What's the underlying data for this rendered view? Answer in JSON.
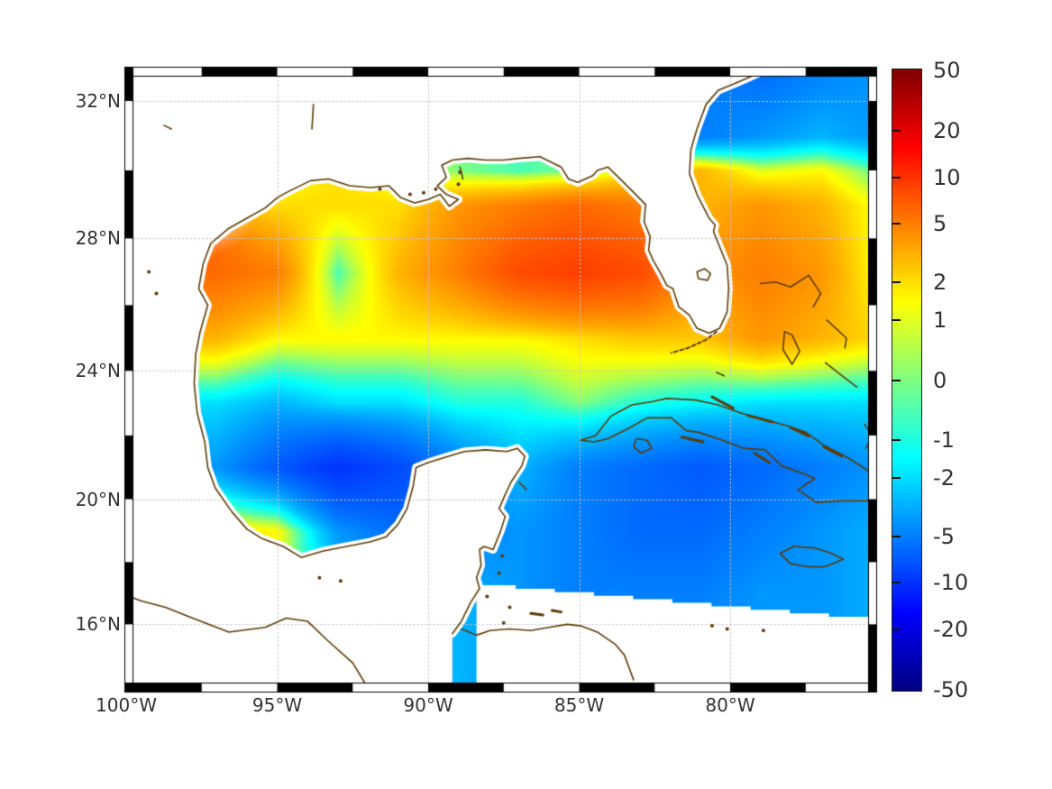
{
  "figure": {
    "kind": "geographic-heatmap",
    "title": "",
    "background": "#ffffff"
  },
  "axes": {
    "x_ticks": [
      {
        "lon": -100,
        "label": "100°W"
      },
      {
        "lon": -95,
        "label": "95°W"
      },
      {
        "lon": -90,
        "label": "90°W"
      },
      {
        "lon": -85,
        "label": "85°W"
      },
      {
        "lon": -80,
        "label": "80°W"
      }
    ],
    "y_ticks": [
      {
        "lat": 32,
        "label": "32°N"
      },
      {
        "lat": 28,
        "label": "28°N"
      },
      {
        "lat": 24,
        "label": "24°N"
      },
      {
        "lat": 20,
        "label": "20°N"
      },
      {
        "lat": 16,
        "label": "16°N"
      }
    ]
  },
  "colorbar": {
    "min": -50,
    "max": 50,
    "scale": "asinh",
    "colormap": "jet",
    "tick_values": [
      50,
      20,
      10,
      5,
      2,
      1,
      0,
      -1,
      -2,
      -5,
      -10,
      -20,
      -50
    ],
    "tick_labels": [
      "50",
      "20",
      "10",
      "5",
      "2",
      "1",
      "0",
      "-1",
      "-2",
      "-5",
      "-10",
      "-20",
      "-50"
    ],
    "jet_stops_top_to_bottom": [
      "#800000",
      "#ff0000",
      "#ffff00",
      "#80ff80",
      "#00ffff",
      "#0000ff",
      "#000080"
    ]
  },
  "chart_data": {
    "type": "heatmap",
    "title": "",
    "projection": "mercator",
    "lon_range": [
      -100,
      -75.4
    ],
    "lat_range": [
      14.1,
      32.75
    ],
    "color_limits": [
      -50,
      50
    ],
    "color_scale": "signed asinh (symlog), jet colormap",
    "gridlines": {
      "lons": [
        -95,
        -90,
        -85,
        -80
      ],
      "lats": [
        32,
        28,
        24,
        20,
        16
      ],
      "style": "dotted gray"
    },
    "grid": {
      "lons": [
        -99,
        -97,
        -95,
        -93,
        -91,
        -89,
        -87,
        -85,
        -83,
        -81,
        -79,
        -77,
        -75
      ],
      "lats": [
        33,
        31,
        30,
        29,
        27,
        25,
        23,
        21,
        19,
        17,
        15
      ],
      "values": [
        [
          null,
          null,
          null,
          null,
          null,
          null,
          null,
          null,
          null,
          -5,
          -6,
          -5,
          -4
        ],
        [
          null,
          null,
          null,
          null,
          null,
          null,
          null,
          null,
          -3,
          -5,
          -4,
          -3,
          -4
        ],
        [
          null,
          null,
          1,
          2,
          1,
          0,
          -0.5,
          0,
          2,
          3,
          1,
          1.5,
          -0.5
        ],
        [
          null,
          null,
          2,
          2,
          2,
          4,
          5,
          6,
          5,
          3,
          4,
          3,
          1
        ],
        [
          null,
          6,
          5,
          -0.5,
          3,
          5,
          8,
          9,
          8,
          4,
          5,
          4,
          1
        ],
        [
          null,
          3,
          1.5,
          1.5,
          1.5,
          1.5,
          1.5,
          2,
          2.5,
          2.5,
          4,
          3,
          2
        ],
        [
          null,
          -2,
          -3,
          -2,
          -2,
          -1,
          -1,
          0,
          -1,
          -1.5,
          -2,
          -2,
          -2
        ],
        [
          null,
          -4,
          -7,
          -10,
          -8,
          -5,
          -3,
          -5,
          -6,
          -7,
          -6,
          -5,
          -4
        ],
        [
          null,
          2,
          1.5,
          -4,
          -6,
          -5,
          -4,
          -5,
          -6,
          -6,
          -5,
          -4,
          -3
        ],
        [
          null,
          2,
          1,
          -2,
          -3,
          -3,
          -4,
          -5,
          -5,
          -5,
          -4,
          -4,
          -3
        ],
        [
          null,
          null,
          0,
          -2,
          -3,
          -3,
          -4,
          -4,
          -4,
          -4,
          -4,
          -4,
          -3
        ]
      ]
    },
    "no_data_wedge": {
      "from": [
        -87.6,
        17.3
      ],
      "to": [
        -75.4,
        16.2
      ],
      "note": "stair-step masked region in SE corner"
    }
  },
  "coastlines": {
    "mainland": [
      [
        -78.6,
        33.3
      ],
      [
        -78.9,
        32.85
      ],
      [
        -79.7,
        32.55
      ],
      [
        -80.4,
        32.3
      ],
      [
        -80.8,
        31.9
      ],
      [
        -81.1,
        31.2
      ],
      [
        -81.3,
        30.6
      ],
      [
        -81.35,
        29.9
      ],
      [
        -81.1,
        29.3
      ],
      [
        -80.7,
        28.6
      ],
      [
        -80.5,
        28.4
      ],
      [
        -80.55,
        28.2
      ],
      [
        -80.1,
        27.2
      ],
      [
        -80.05,
        26.5
      ],
      [
        -80.1,
        25.8
      ],
      [
        -80.35,
        25.3
      ],
      [
        -80.7,
        25.15
      ],
      [
        -81.1,
        25.3
      ],
      [
        -81.35,
        25.7
      ],
      [
        -81.7,
        25.95
      ],
      [
        -81.9,
        26.5
      ],
      [
        -82.1,
        26.6
      ],
      [
        -82.3,
        26.95
      ],
      [
        -82.55,
        27.35
      ],
      [
        -82.7,
        27.65
      ],
      [
        -82.65,
        28.05
      ],
      [
        -82.85,
        28.5
      ],
      [
        -82.8,
        29.0
      ],
      [
        -83.3,
        29.45
      ],
      [
        -83.7,
        29.8
      ],
      [
        -84.05,
        30.1
      ],
      [
        -84.4,
        30.0
      ],
      [
        -84.55,
        29.85
      ],
      [
        -85.05,
        29.65
      ],
      [
        -85.35,
        29.75
      ],
      [
        -85.6,
        30.1
      ],
      [
        -86.3,
        30.4
      ],
      [
        -87.0,
        30.35
      ],
      [
        -87.5,
        30.3
      ],
      [
        -88.1,
        30.3
      ],
      [
        -88.7,
        30.35
      ],
      [
        -89.2,
        30.3
      ],
      [
        -89.55,
        30.15
      ],
      [
        -89.4,
        29.8
      ],
      [
        -89.7,
        29.55
      ],
      [
        -89.4,
        29.3
      ],
      [
        -89.0,
        29.15
      ],
      [
        -89.3,
        28.95
      ],
      [
        -89.6,
        29.3
      ],
      [
        -90.0,
        29.15
      ],
      [
        -90.45,
        29.05
      ],
      [
        -90.9,
        29.2
      ],
      [
        -91.3,
        29.55
      ],
      [
        -91.9,
        29.5
      ],
      [
        -92.6,
        29.55
      ],
      [
        -93.3,
        29.75
      ],
      [
        -93.9,
        29.7
      ],
      [
        -94.7,
        29.35
      ],
      [
        -95.0,
        29.2
      ],
      [
        -95.4,
        28.9
      ],
      [
        -96.1,
        28.55
      ],
      [
        -96.6,
        28.3
      ],
      [
        -97.2,
        27.85
      ],
      [
        -97.45,
        27.25
      ],
      [
        -97.6,
        26.5
      ],
      [
        -97.3,
        26.0
      ],
      [
        -97.55,
        25.2
      ],
      [
        -97.7,
        24.5
      ],
      [
        -97.75,
        23.6
      ],
      [
        -97.65,
        22.7
      ],
      [
        -97.4,
        21.8
      ],
      [
        -97.3,
        21.0
      ],
      [
        -97.05,
        20.35
      ],
      [
        -96.5,
        19.6
      ],
      [
        -96.0,
        19.05
      ],
      [
        -95.5,
        18.75
      ],
      [
        -94.8,
        18.5
      ],
      [
        -94.2,
        18.15
      ],
      [
        -93.5,
        18.35
      ],
      [
        -92.7,
        18.5
      ],
      [
        -91.9,
        18.65
      ],
      [
        -91.4,
        18.8
      ],
      [
        -91.0,
        19.2
      ],
      [
        -90.7,
        19.7
      ],
      [
        -90.5,
        20.4
      ],
      [
        -90.4,
        21.0
      ],
      [
        -90.0,
        21.15
      ],
      [
        -89.5,
        21.3
      ],
      [
        -88.8,
        21.5
      ],
      [
        -88.1,
        21.55
      ],
      [
        -87.4,
        21.5
      ],
      [
        -87.05,
        21.6
      ],
      [
        -86.8,
        21.35
      ],
      [
        -86.9,
        21.05
      ],
      [
        -87.25,
        20.55
      ],
      [
        -87.45,
        20.15
      ],
      [
        -87.65,
        19.7
      ],
      [
        -87.45,
        19.45
      ],
      [
        -87.6,
        19.0
      ],
      [
        -87.85,
        18.4
      ],
      [
        -88.15,
        18.5
      ],
      [
        -88.3,
        18.4
      ],
      [
        -88.25,
        17.9
      ],
      [
        -88.4,
        17.5
      ],
      [
        -88.3,
        17.15
      ],
      [
        -88.6,
        16.7
      ],
      [
        -88.9,
        16.1
      ],
      [
        -89.2,
        15.7
      ]
    ],
    "mainland_closure": [
      [
        -89.2,
        13.5
      ],
      [
        -101.5,
        13.5
      ],
      [
        -101.5,
        35
      ],
      [
        -78.6,
        35
      ]
    ],
    "pacific_coast": [
      [
        -100.3,
        17.05
      ],
      [
        -99.5,
        16.75
      ],
      [
        -98.7,
        16.55
      ],
      [
        -97.8,
        16.2
      ],
      [
        -96.6,
        15.75
      ],
      [
        -95.4,
        15.9
      ],
      [
        -94.7,
        16.2
      ],
      [
        -94.0,
        16.1
      ],
      [
        -93.3,
        15.45
      ],
      [
        -92.5,
        14.75
      ],
      [
        -92.1,
        14.1
      ]
    ],
    "honduras_coast": [
      [
        -88.9,
        15.85
      ],
      [
        -88.4,
        15.65
      ],
      [
        -87.95,
        15.8
      ],
      [
        -87.3,
        15.85
      ],
      [
        -86.6,
        15.8
      ],
      [
        -86.0,
        15.9
      ],
      [
        -85.4,
        16.0
      ],
      [
        -84.95,
        15.95
      ],
      [
        -84.4,
        15.75
      ],
      [
        -83.8,
        15.35
      ],
      [
        -83.5,
        15.0
      ],
      [
        -83.35,
        14.6
      ],
      [
        -83.2,
        14.2
      ]
    ],
    "cuba": [
      [
        -84.95,
        21.85
      ],
      [
        -84.45,
        22.0
      ],
      [
        -83.95,
        22.6
      ],
      [
        -83.25,
        22.95
      ],
      [
        -82.6,
        23.05
      ],
      [
        -82.1,
        23.15
      ],
      [
        -81.15,
        23.1
      ],
      [
        -80.4,
        22.95
      ],
      [
        -79.65,
        22.7
      ],
      [
        -78.9,
        22.5
      ],
      [
        -78.1,
        22.3
      ],
      [
        -77.5,
        22.1
      ],
      [
        -76.9,
        21.7
      ],
      [
        -76.1,
        21.3
      ],
      [
        -75.35,
        20.85
      ],
      [
        -75.35,
        19.95
      ],
      [
        -76.3,
        19.95
      ],
      [
        -77.15,
        19.9
      ],
      [
        -77.75,
        20.3
      ],
      [
        -77.2,
        20.65
      ],
      [
        -77.55,
        20.8
      ],
      [
        -78.3,
        21.05
      ],
      [
        -78.85,
        21.55
      ],
      [
        -79.55,
        21.6
      ],
      [
        -80.25,
        21.85
      ],
      [
        -81.05,
        22.1
      ],
      [
        -81.45,
        22.15
      ],
      [
        -81.95,
        22.55
      ],
      [
        -82.75,
        22.55
      ],
      [
        -83.4,
        22.2
      ],
      [
        -84.05,
        21.9
      ],
      [
        -84.5,
        21.8
      ]
    ],
    "isla_juventud": [
      [
        -83.1,
        21.9
      ],
      [
        -82.75,
        21.85
      ],
      [
        -82.6,
        21.6
      ],
      [
        -82.95,
        21.45
      ],
      [
        -83.2,
        21.65
      ]
    ],
    "jamaica": [
      [
        -78.35,
        18.28
      ],
      [
        -77.9,
        18.5
      ],
      [
        -77.2,
        18.45
      ],
      [
        -76.7,
        18.3
      ],
      [
        -76.25,
        18.1
      ],
      [
        -76.85,
        17.85
      ],
      [
        -77.45,
        17.85
      ],
      [
        -78.0,
        17.95
      ]
    ],
    "grand_bahama_abaco": [
      [
        -79.0,
        26.65
      ],
      [
        -78.5,
        26.7
      ],
      [
        -78.0,
        26.55
      ],
      [
        -77.4,
        26.9
      ],
      [
        -77.0,
        26.35
      ],
      [
        -77.25,
        25.95
      ]
    ],
    "andros": [
      [
        -78.2,
        25.2
      ],
      [
        -77.95,
        25.1
      ],
      [
        -77.7,
        24.6
      ],
      [
        -77.95,
        24.2
      ],
      [
        -78.25,
        24.65
      ],
      [
        -78.2,
        25.2
      ]
    ],
    "eleuthera": [
      [
        -76.8,
        25.55
      ],
      [
        -76.15,
        25.0
      ],
      [
        -76.2,
        24.7
      ]
    ],
    "exuma_chain": [
      [
        -76.85,
        24.25
      ],
      [
        -76.3,
        23.85
      ],
      [
        -75.8,
        23.5
      ]
    ],
    "long_island": [
      [
        -75.3,
        23.7
      ],
      [
        -74.95,
        23.1
      ]
    ],
    "ragged_island_arc": [
      [
        -75.55,
        22.35
      ],
      [
        -75.3,
        22.0
      ],
      [
        -75.5,
        21.6
      ]
    ],
    "cay_sal": [
      [
        -80.45,
        23.95
      ],
      [
        -80.2,
        23.85
      ]
    ],
    "florida_keys": [
      [
        -80.45,
        25.2
      ],
      [
        -80.8,
        24.95
      ],
      [
        -81.4,
        24.7
      ],
      [
        -81.95,
        24.55
      ]
    ],
    "cozumel": [
      [
        -87.0,
        20.55
      ],
      [
        -86.75,
        20.3
      ]
    ],
    "okeechobee": [
      [
        -81.1,
        27.0
      ],
      [
        -80.85,
        27.1
      ],
      [
        -80.65,
        26.95
      ],
      [
        -80.75,
        26.75
      ],
      [
        -81.05,
        26.8
      ]
    ],
    "cuba_north_cays": [
      [
        [
          -80.6,
          23.2
        ],
        [
          -79.9,
          22.85
        ]
      ],
      [
        [
          -79.4,
          22.62
        ],
        [
          -78.6,
          22.42
        ]
      ],
      [
        [
          -78.0,
          22.25
        ],
        [
          -77.4,
          21.98
        ]
      ],
      [
        [
          -76.9,
          21.65
        ],
        [
          -76.3,
          21.35
        ]
      ]
    ],
    "cuba_south_cays": [
      [
        [
          -79.2,
          21.45
        ],
        [
          -78.7,
          21.15
        ]
      ],
      [
        [
          -81.6,
          21.95
        ],
        [
          -80.9,
          21.8
        ]
      ]
    ],
    "bay_islands": [
      [
        [
          -86.6,
          16.35
        ],
        [
          -86.2,
          16.3
        ]
      ],
      [
        [
          -85.9,
          16.45
        ],
        [
          -85.6,
          16.4
        ]
      ]
    ],
    "haiti_stubs": [
      [
        [
          -75.42,
          19.95
        ],
        [
          -75.15,
          19.8
        ]
      ],
      [
        [
          -75.42,
          18.45
        ],
        [
          -75.2,
          18.35
        ]
      ]
    ],
    "texas_lakes": [
      [
        [
          -93.8,
          31.9
        ],
        [
          -93.85,
          31.2
        ]
      ],
      [
        [
          -98.75,
          31.3
        ],
        [
          -98.5,
          31.2
        ]
      ]
    ],
    "chandeleur": [
      [
        -88.85,
        29.75
      ],
      [
        -88.95,
        30.1
      ]
    ],
    "marsh_dots": [
      [
        -90.6,
        29.3
      ],
      [
        -90.15,
        29.35
      ],
      [
        -89.75,
        29.45
      ],
      [
        -89.0,
        29.6
      ],
      [
        -91.6,
        29.45
      ],
      [
        -88.95,
        29.95
      ]
    ],
    "belize_cay_dots": [
      [
        -87.55,
        18.2
      ],
      [
        -87.65,
        17.65
      ],
      [
        -87.3,
        16.55
      ],
      [
        -87.5,
        16.05
      ],
      [
        -88.05,
        16.9
      ]
    ],
    "miskito_dots": [
      [
        -80.6,
        15.95
      ],
      [
        -80.1,
        15.85
      ],
      [
        -78.9,
        15.8
      ]
    ],
    "mexico_inland_dots": [
      [
        -99.25,
        27.0
      ],
      [
        -99.0,
        26.35
      ],
      [
        -93.6,
        17.5
      ],
      [
        -92.9,
        17.4
      ]
    ]
  },
  "style": {
    "coast_color": "#5e3c08",
    "grid_color": "#c4c4c4",
    "label_color": "#333333",
    "land_color": "#ffffff",
    "frame_color": "#000000"
  }
}
